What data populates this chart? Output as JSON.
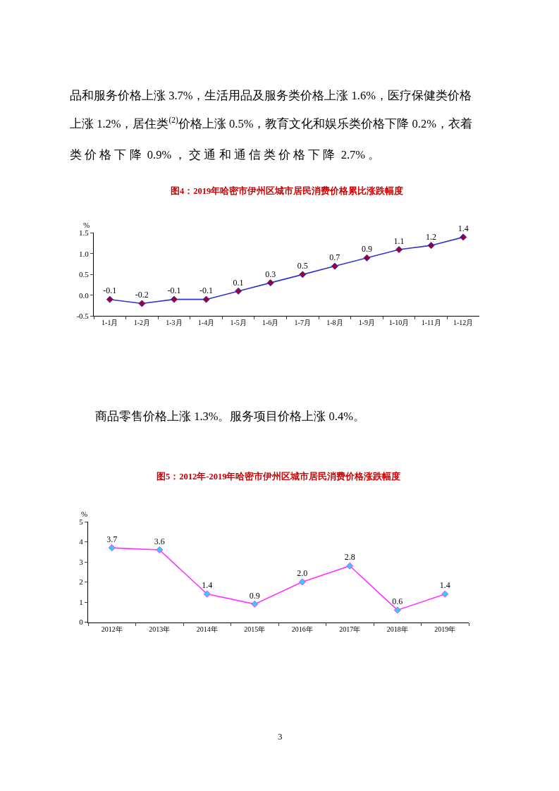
{
  "chart_data": [
    {
      "type": "line",
      "title": "图4：2019年哈密市伊州区城市居民消费价格累比涨跌幅度",
      "ylabel": "%",
      "annotations": [
        "品和服务价格上涨 3.7%，生活用品及服务类价格上涨 1.6%，医疗保健类价格",
        "上涨 1.2%，居住类$^{(2)}$价格上涨 0.5%，教育文化和娱乐类价格下降 0.2%，衣着",
        "类 价 格 下 降  0.9% ， 交 通 和 通 信 类 价 格 下 降  2.7% 。"
      ],
      "categories": [
        "1-1月",
        "1-2月",
        "1-3月",
        "1-4月",
        "1-5月",
        "1-6月",
        "1-7月",
        "1-8月",
        "1-9月",
        "1-10月",
        "1-11月",
        "1-12月"
      ],
      "series": [
        {
          "color": "#3333cc",
          "colors": [
            "#990033",
            "#990033",
            "#990033",
            "#990033",
            "#990033",
            "#990033",
            "#990033",
            "#990033",
            "#990033",
            "#990033",
            "#990033",
            "#990033"
          ],
          "values": [
            -0.1,
            -0.2,
            -0.1,
            -0.1,
            0.1,
            0.3,
            0.5,
            0.7,
            0.9,
            1.1,
            1.2,
            1.4
          ]
        }
      ],
      "ylim": [
        -0.5,
        1.5
      ],
      "yticks": [
        {
          "value": -0.5,
          "label": "-0.5"
        },
        {
          "value": 0,
          "label": "0.0"
        },
        {
          "value": 0.5,
          "label": "0.5"
        },
        {
          "value": 1,
          "label": "1.0"
        },
        {
          "value": 1.5,
          "label": "1.5"
        }
      ],
      "marker": "diamond",
      "data_labels": true
    },
    {
      "type": "line",
      "title": "图5：2012年-2019年哈密市伊州区城市居民消费价格涨跌幅度",
      "ylabel": "%",
      "annotations": [
        "商品零售价格上涨 1.3%。服务项目价格上涨 0.4%。",
        "3"
      ],
      "categories": [
        "2012年",
        "2013年",
        "2014年",
        "2015年",
        "2016年",
        "2017年",
        "2018年",
        "2019年"
      ],
      "series": [
        {
          "color": "#ff33ff",
          "colors": [
            "#33ccff",
            "#33ccff",
            "#33ccff",
            "#33ccff",
            "#33ccff",
            "#33ccff",
            "#33ccff",
            "#33ccff"
          ],
          "values": [
            3.7,
            3.6,
            1.4,
            0.9,
            2.0,
            2.8,
            0.6,
            1.4
          ],
          "value_labels": [
            "3.7",
            "3.6",
            "1.4",
            "0.9",
            "2.0",
            "2.8",
            "0.6",
            "1.4"
          ]
        }
      ],
      "ylim": [
        0,
        5
      ],
      "yticks": [
        0,
        1,
        2,
        3,
        4,
        5
      ],
      "marker": "diamond"
    }
  ]
}
